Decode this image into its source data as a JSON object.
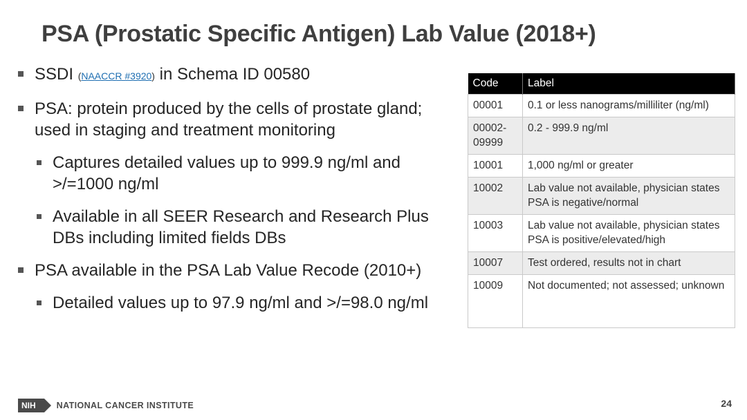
{
  "title": "PSA (Prostatic Specific Antigen) Lab Value (2018+)",
  "bullets": {
    "b1": {
      "pre": "SSDI ",
      "ref_open": "(",
      "ref_link": "NAACCR #3920",
      "ref_close": ")",
      "post": " in Schema ID 00580"
    },
    "b2": "PSA: protein produced by the cells of prostate gland; used in staging and treatment monitoring",
    "b2_1": "Captures detailed values up to 999.9 ng/ml and >/=1000 ng/ml",
    "b2_2": "Available in all SEER Research and Research Plus DBs including limited fields DBs",
    "b3": "PSA available in the PSA Lab Value Recode (2010+)",
    "b3_1": "Detailed values up to 97.9 ng/ml and >/=98.0 ng/ml"
  },
  "table": {
    "headers": [
      "Code",
      "Label"
    ],
    "rows": [
      {
        "code": "00001",
        "label": "0.1 or less nanograms/milliliter (ng/ml)"
      },
      {
        "code": "00002-09999",
        "label": "0.2 - 999.9 ng/ml"
      },
      {
        "code": "10001",
        "label": "1,000 ng/ml or greater"
      },
      {
        "code": "10002",
        "label": "Lab value not available, physician states PSA is negative/normal"
      },
      {
        "code": "10003",
        "label": "Lab value not available, physician states PSA is positive/elevated/high"
      },
      {
        "code": "10007",
        "label": "Test ordered, results not in chart"
      },
      {
        "code": "10009",
        "label": "Not documented; not assessed; unknown"
      }
    ]
  },
  "footer": {
    "logo_text": "NIH",
    "institute": "NATIONAL CANCER INSTITUTE",
    "page_number": "24"
  }
}
